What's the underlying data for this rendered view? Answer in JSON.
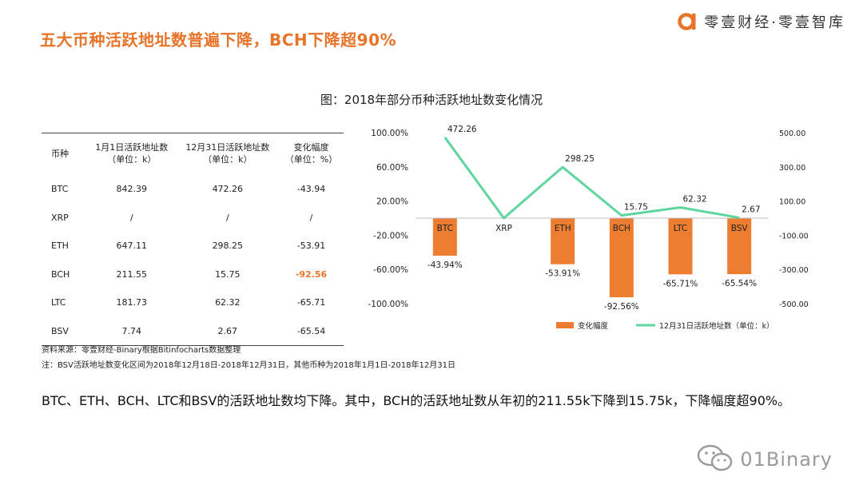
{
  "page": {
    "heading": "五大币种活跃地址数普遍下降，BCH下降超90%",
    "brand": "零壹财经·零壹智库",
    "figure_title": "图：2018年部分币种活跃地址数变化情况",
    "source_line": "资料来源：零壹财经-Binary根据Bitinfocharts数据整理",
    "note_line": "注：BSV活跃地址数变化区间为2018年12月18日-2018年12月31日，其他币种为2018年1月1日-2018年12月31日",
    "summary": "BTC、ETH、BCH、LTC和BSV的活跃地址数均下降。其中，BCH的活跃地址数从年初的211.55k下降到15.75k，下降幅度超90%。",
    "watermark": "01Binary"
  },
  "table": {
    "headers": [
      "币种",
      "1月1日活跃地址数\n（单位：k）",
      "12月31日活跃地址数\n（单位：k）",
      "变化幅度\n（单位：%）"
    ],
    "rows": [
      [
        "BTC",
        "842.39",
        "472.26",
        "-43.94"
      ],
      [
        "XRP",
        "/",
        "/",
        "/"
      ],
      [
        "ETH",
        "647.11",
        "298.25",
        "-53.91"
      ],
      [
        "BCH",
        "211.55",
        "15.75",
        "-92.56"
      ],
      [
        "LTC",
        "181.73",
        "62.32",
        "-65.71"
      ],
      [
        "BSV",
        "7.74",
        "2.67",
        "-65.54"
      ]
    ],
    "highlight": {
      "row": 3,
      "col": 3,
      "color": "#e8742a"
    }
  },
  "chart_data": {
    "type": "bar",
    "categories": [
      "BTC",
      "XRP",
      "ETH",
      "BCH",
      "LTC",
      "BSV"
    ],
    "series": [
      {
        "name": "变化幅度",
        "type": "bar",
        "axis": "left",
        "color": "#ed7d31",
        "values": [
          -43.94,
          null,
          -53.91,
          -92.56,
          -65.71,
          -65.54
        ],
        "labels": [
          "-43.94%",
          "",
          "-53.91%",
          "-92.56%",
          "-65.71%",
          "-65.54%"
        ]
      },
      {
        "name": "12月31日活跃地址数（单位：k）",
        "type": "line",
        "axis": "right",
        "color": "#5fd5a0",
        "values": [
          472.26,
          0,
          298.25,
          15.75,
          62.32,
          2.67
        ],
        "labels": [
          "472.26",
          "",
          "298.25",
          "15.75",
          "62.32",
          "2.67"
        ]
      }
    ],
    "y_left": {
      "ticks": [
        100,
        60,
        20,
        -20,
        -60,
        -100
      ],
      "tick_labels": [
        "100.00%",
        "60.00%",
        "20.00%",
        "-20.00%",
        "-60.00%",
        "-100.00%"
      ]
    },
    "y_right": {
      "ticks": [
        500,
        300,
        100,
        -100,
        -300,
        -500
      ],
      "tick_labels": [
        "500.00",
        "300.00",
        "100.00",
        "-100.00",
        "-300.00",
        "-500.00"
      ]
    },
    "ylim_left": [
      -100,
      100
    ],
    "ylim_right": [
      -500,
      500
    ],
    "grid": false,
    "legend": "bottom"
  },
  "colors": {
    "accent": "#e8742a",
    "bar": "#ed7d31",
    "line": "#5fd5a0"
  }
}
